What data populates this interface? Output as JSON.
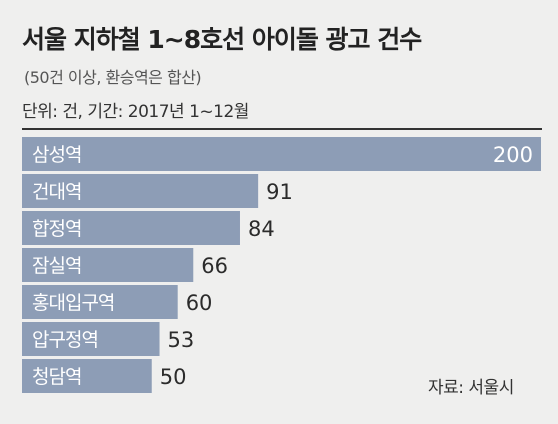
{
  "title": "서울 지하철 1~8호선 아이돌 광고 건수",
  "subtitle": "(50건 이상, 환승역은 합산)",
  "unit_label": "단위: 건, 기간: 2017년 1~12월",
  "source": "자료: 서울시",
  "chart_data": {
    "type": "bar",
    "orientation": "horizontal",
    "categories": [
      "삼성역",
      "건대역",
      "합정역",
      "잠실역",
      "홍대입구역",
      "압구정역",
      "청담역"
    ],
    "values": [
      200,
      91,
      84,
      66,
      60,
      53,
      50
    ],
    "xlim": [
      0,
      200
    ],
    "grid": false,
    "bar_color": "#8d9db6",
    "label_color": "#ffffff",
    "value_color": "#2b2b2b",
    "top_value_color": "#ffffff"
  }
}
